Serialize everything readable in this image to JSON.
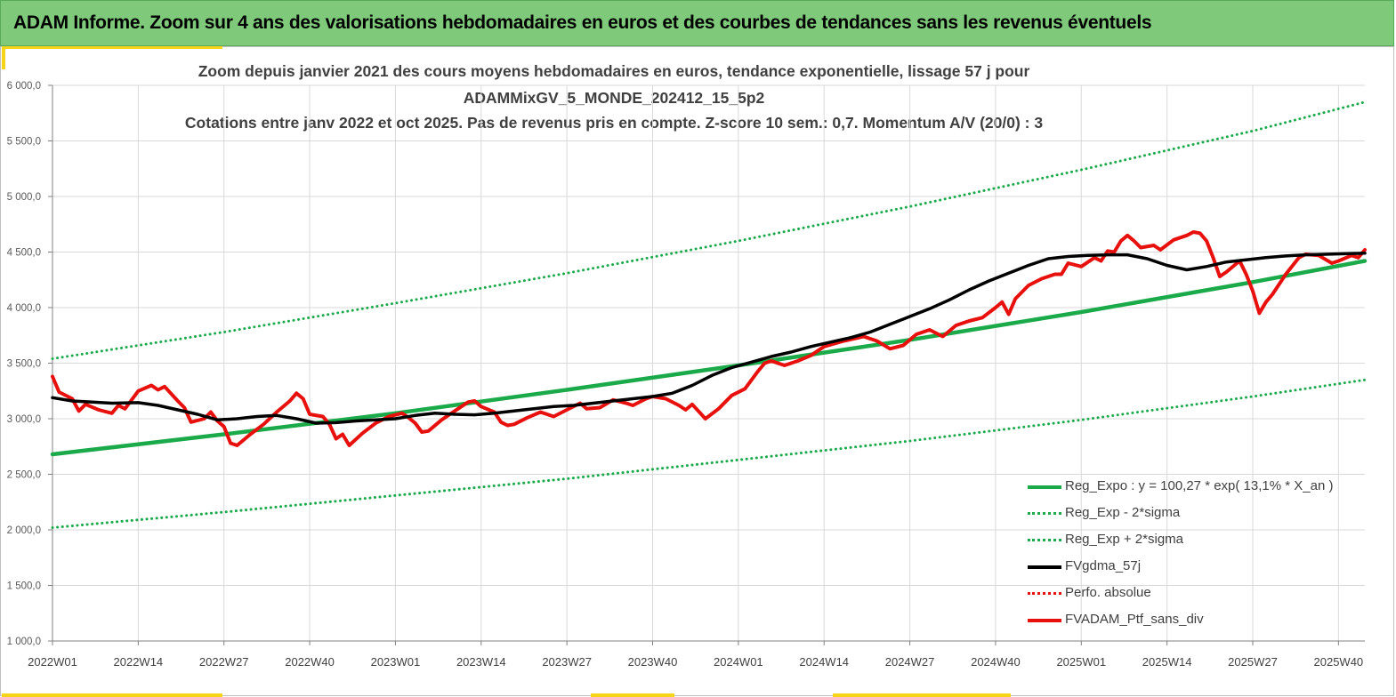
{
  "banner": {
    "title": "ADAM Informe. Zoom sur 4 ans des valorisations hebdomadaires en euros et des courbes de tendances sans les revenus éventuels"
  },
  "colors": {
    "banner_bg": "#7fc97b",
    "trend_green": "#1aaa4a",
    "red": "#e8100c",
    "black": "#000000",
    "accent_yellow": "#f7d417"
  },
  "chart_data": {
    "type": "line",
    "title_lines": [
      "Zoom depuis janvier 2021 des cours moyens hebdomadaires  en euros, tendance exponentielle, lissage 57 j pour",
      "ADAMMixGV_5_MONDE_202412_15_5p2",
      "Cotations  entre janv 2022 et oct 2025. Pas de revenus pris en compte. Z-score 10 sem.: 0,7. Momentum A/V (20/0) : 3"
    ],
    "xlabel": "",
    "ylabel": "",
    "ylim": [
      1000,
      6000
    ],
    "xlim": [
      1,
      200
    ],
    "grid": true,
    "legend_position": "bottom-right",
    "y_ticks": [
      "1 000,0",
      "1 500,0",
      "2 000,0",
      "2 500,0",
      "3 000,0",
      "3 500,0",
      "4 000,0",
      "4 500,0",
      "5 000,0",
      "5 500,0",
      "6 000,0"
    ],
    "x_ticks": [
      {
        "week": 1,
        "label": "2022W01"
      },
      {
        "week": 14,
        "label": "2022W14"
      },
      {
        "week": 27,
        "label": "2022W27"
      },
      {
        "week": 40,
        "label": "2022W40"
      },
      {
        "week": 53,
        "label": "2023W01"
      },
      {
        "week": 66,
        "label": "2023W14"
      },
      {
        "week": 79,
        "label": "2023W27"
      },
      {
        "week": 92,
        "label": "2023W40"
      },
      {
        "week": 105,
        "label": "2024W01"
      },
      {
        "week": 118,
        "label": "2024W14"
      },
      {
        "week": 131,
        "label": "2024W27"
      },
      {
        "week": 144,
        "label": "2024W40"
      },
      {
        "week": 157,
        "label": "2025W01"
      },
      {
        "week": 170,
        "label": "2025W14"
      },
      {
        "week": 183,
        "label": "2025W27"
      },
      {
        "week": 196,
        "label": "2025W40"
      }
    ],
    "series": [
      {
        "name": "Reg_Expo : y = 100,27 * exp( 13,1% *  X_an )",
        "style": "solid",
        "color": "#1aaa4a",
        "width": 4.5,
        "points": [
          [
            1,
            2680
          ],
          [
            27,
            2860
          ],
          [
            53,
            3050
          ],
          [
            79,
            3260
          ],
          [
            105,
            3480
          ],
          [
            131,
            3710
          ],
          [
            157,
            3960
          ],
          [
            183,
            4230
          ],
          [
            200,
            4420
          ]
        ]
      },
      {
        "name": "Reg_Exp - 2*sigma",
        "style": "dotted",
        "color": "#1aaa4a",
        "width": 3,
        "points": [
          [
            1,
            2020
          ],
          [
            27,
            2160
          ],
          [
            53,
            2310
          ],
          [
            79,
            2460
          ],
          [
            105,
            2630
          ],
          [
            131,
            2800
          ],
          [
            157,
            2990
          ],
          [
            183,
            3200
          ],
          [
            200,
            3350
          ]
        ]
      },
      {
        "name": "Reg_Exp + 2*sigma",
        "style": "dotted",
        "color": "#1aaa4a",
        "width": 3,
        "points": [
          [
            1,
            3540
          ],
          [
            27,
            3780
          ],
          [
            53,
            4040
          ],
          [
            79,
            4310
          ],
          [
            105,
            4600
          ],
          [
            131,
            4910
          ],
          [
            157,
            5240
          ],
          [
            183,
            5590
          ],
          [
            200,
            5850
          ]
        ]
      },
      {
        "name": "FVgdma_57j",
        "style": "solid",
        "color": "#000000",
        "width": 3.5,
        "points": [
          [
            1,
            3190
          ],
          [
            4,
            3160
          ],
          [
            7,
            3150
          ],
          [
            10,
            3140
          ],
          [
            14,
            3145
          ],
          [
            17,
            3120
          ],
          [
            20,
            3080
          ],
          [
            23,
            3040
          ],
          [
            26,
            2990
          ],
          [
            29,
            3000
          ],
          [
            32,
            3020
          ],
          [
            35,
            3030
          ],
          [
            38,
            3000
          ],
          [
            41,
            2960
          ],
          [
            44,
            2965
          ],
          [
            47,
            2980
          ],
          [
            50,
            2990
          ],
          [
            53,
            3000
          ],
          [
            56,
            3030
          ],
          [
            59,
            3050
          ],
          [
            62,
            3040
          ],
          [
            65,
            3035
          ],
          [
            68,
            3050
          ],
          [
            71,
            3070
          ],
          [
            74,
            3090
          ],
          [
            77,
            3110
          ],
          [
            80,
            3120
          ],
          [
            83,
            3140
          ],
          [
            86,
            3160
          ],
          [
            89,
            3180
          ],
          [
            92,
            3200
          ],
          [
            95,
            3230
          ],
          [
            98,
            3300
          ],
          [
            101,
            3390
          ],
          [
            104,
            3460
          ],
          [
            107,
            3510
          ],
          [
            110,
            3560
          ],
          [
            113,
            3600
          ],
          [
            116,
            3650
          ],
          [
            119,
            3690
          ],
          [
            122,
            3730
          ],
          [
            125,
            3780
          ],
          [
            128,
            3850
          ],
          [
            131,
            3920
          ],
          [
            134,
            3990
          ],
          [
            137,
            4070
          ],
          [
            140,
            4160
          ],
          [
            143,
            4240
          ],
          [
            146,
            4310
          ],
          [
            149,
            4380
          ],
          [
            152,
            4440
          ],
          [
            155,
            4460
          ],
          [
            158,
            4470
          ],
          [
            161,
            4475
          ],
          [
            164,
            4475
          ],
          [
            167,
            4440
          ],
          [
            170,
            4380
          ],
          [
            173,
            4340
          ],
          [
            176,
            4370
          ],
          [
            179,
            4410
          ],
          [
            182,
            4430
          ],
          [
            185,
            4450
          ],
          [
            188,
            4465
          ],
          [
            191,
            4475
          ],
          [
            194,
            4480
          ],
          [
            197,
            4485
          ],
          [
            200,
            4490
          ]
        ]
      },
      {
        "name": "Perfo. absolue",
        "style": "dotted",
        "color": "#e8100c",
        "width": 3,
        "points": []
      },
      {
        "name": "FVADAM_Ptf_sans_div",
        "style": "solid",
        "color": "#e8100c",
        "width": 4,
        "points": [
          [
            1,
            3380
          ],
          [
            2,
            3240
          ],
          [
            4,
            3180
          ],
          [
            5,
            3070
          ],
          [
            6,
            3130
          ],
          [
            8,
            3080
          ],
          [
            10,
            3050
          ],
          [
            11,
            3120
          ],
          [
            12,
            3090
          ],
          [
            14,
            3250
          ],
          [
            16,
            3300
          ],
          [
            17,
            3260
          ],
          [
            18,
            3290
          ],
          [
            20,
            3160
          ],
          [
            21,
            3100
          ],
          [
            22,
            2970
          ],
          [
            24,
            3000
          ],
          [
            25,
            3060
          ],
          [
            26,
            2980
          ],
          [
            27,
            2930
          ],
          [
            28,
            2780
          ],
          [
            29,
            2760
          ],
          [
            31,
            2860
          ],
          [
            33,
            2950
          ],
          [
            35,
            3060
          ],
          [
            37,
            3160
          ],
          [
            38,
            3230
          ],
          [
            39,
            3180
          ],
          [
            40,
            3040
          ],
          [
            42,
            3020
          ],
          [
            43,
            2950
          ],
          [
            44,
            2820
          ],
          [
            45,
            2860
          ],
          [
            46,
            2760
          ],
          [
            48,
            2870
          ],
          [
            50,
            2960
          ],
          [
            52,
            3020
          ],
          [
            54,
            3050
          ],
          [
            55,
            3010
          ],
          [
            56,
            2960
          ],
          [
            57,
            2880
          ],
          [
            58,
            2890
          ],
          [
            60,
            2990
          ],
          [
            62,
            3070
          ],
          [
            64,
            3150
          ],
          [
            65,
            3160
          ],
          [
            66,
            3110
          ],
          [
            68,
            3060
          ],
          [
            69,
            2970
          ],
          [
            70,
            2940
          ],
          [
            71,
            2950
          ],
          [
            73,
            3010
          ],
          [
            75,
            3060
          ],
          [
            77,
            3020
          ],
          [
            79,
            3080
          ],
          [
            81,
            3140
          ],
          [
            82,
            3090
          ],
          [
            84,
            3100
          ],
          [
            86,
            3170
          ],
          [
            88,
            3140
          ],
          [
            89,
            3120
          ],
          [
            91,
            3180
          ],
          [
            92,
            3200
          ],
          [
            94,
            3180
          ],
          [
            96,
            3120
          ],
          [
            97,
            3080
          ],
          [
            98,
            3130
          ],
          [
            100,
            3000
          ],
          [
            102,
            3090
          ],
          [
            104,
            3210
          ],
          [
            106,
            3270
          ],
          [
            108,
            3430
          ],
          [
            109,
            3500
          ],
          [
            110,
            3520
          ],
          [
            112,
            3480
          ],
          [
            114,
            3520
          ],
          [
            116,
            3570
          ],
          [
            118,
            3650
          ],
          [
            121,
            3700
          ],
          [
            124,
            3740
          ],
          [
            126,
            3700
          ],
          [
            128,
            3630
          ],
          [
            130,
            3660
          ],
          [
            132,
            3760
          ],
          [
            134,
            3800
          ],
          [
            136,
            3740
          ],
          [
            138,
            3840
          ],
          [
            140,
            3880
          ],
          [
            142,
            3910
          ],
          [
            144,
            4000
          ],
          [
            145,
            4050
          ],
          [
            146,
            3940
          ],
          [
            147,
            4080
          ],
          [
            149,
            4200
          ],
          [
            151,
            4260
          ],
          [
            153,
            4300
          ],
          [
            154,
            4300
          ],
          [
            155,
            4400
          ],
          [
            157,
            4370
          ],
          [
            159,
            4450
          ],
          [
            160,
            4420
          ],
          [
            161,
            4510
          ],
          [
            162,
            4500
          ],
          [
            163,
            4600
          ],
          [
            164,
            4650
          ],
          [
            165,
            4600
          ],
          [
            166,
            4540
          ],
          [
            168,
            4560
          ],
          [
            169,
            4520
          ],
          [
            171,
            4610
          ],
          [
            173,
            4650
          ],
          [
            174,
            4680
          ],
          [
            175,
            4670
          ],
          [
            176,
            4600
          ],
          [
            177,
            4450
          ],
          [
            178,
            4280
          ],
          [
            179,
            4320
          ],
          [
            181,
            4420
          ],
          [
            182,
            4300
          ],
          [
            183,
            4150
          ],
          [
            184,
            3950
          ],
          [
            185,
            4050
          ],
          [
            186,
            4120
          ],
          [
            188,
            4300
          ],
          [
            190,
            4450
          ],
          [
            191,
            4480
          ],
          [
            193,
            4470
          ],
          [
            195,
            4400
          ],
          [
            196,
            4420
          ],
          [
            198,
            4470
          ],
          [
            199,
            4450
          ],
          [
            200,
            4520
          ]
        ]
      }
    ]
  }
}
